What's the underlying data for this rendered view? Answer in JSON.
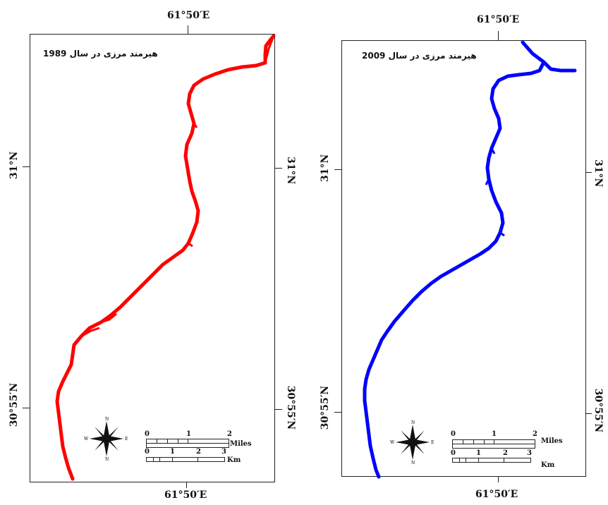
{
  "maps": [
    {
      "title": "هیرمند مرزی در سال 1989",
      "river_color": "#ff0000",
      "top_lon": "61°50′E",
      "bottom_lon": "61°50′E",
      "left_lat_top": "31°N",
      "left_lat_bottom": "30°55′N",
      "right_lat_top": "31°N",
      "right_lat_bottom": "30°55′N",
      "scale": {
        "miles_ticks": [
          "0",
          "1",
          "2"
        ],
        "miles_unit": "Miles",
        "km_ticks": [
          "0",
          "1",
          "2",
          "3"
        ],
        "km_unit": "Km"
      },
      "compass": {
        "n": "N",
        "s": "N",
        "e": "E",
        "w": "W"
      }
    },
    {
      "title": "هیرمند مرزی در سال 2009",
      "river_color": "#0000ff",
      "top_lon": "61°50′E",
      "bottom_lon": "61°50′E",
      "left_lat_top": "31°N",
      "left_lat_bottom": "30°55′N",
      "right_lat_top": "31°N",
      "right_lat_bottom": "30°55′N",
      "scale": {
        "miles_ticks": [
          "0",
          "1",
          "2"
        ],
        "miles_unit": "Miles",
        "km_ticks": [
          "0",
          "1",
          "2",
          "3"
        ],
        "km_unit": "Km"
      },
      "compass": {
        "n": "N",
        "s": "N",
        "e": "E",
        "w": "W"
      }
    }
  ]
}
